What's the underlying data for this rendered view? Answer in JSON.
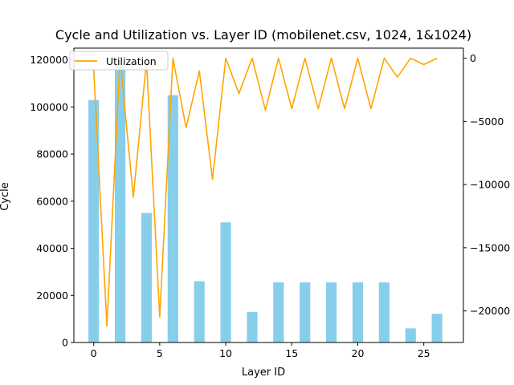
{
  "chart_data": {
    "type": "bar+line",
    "title": "Cycle and Utilization vs. Layer ID (mobilenet.csv, 1024, 1&1024)",
    "xlabel": "Layer ID",
    "ylabel": "Cycle",
    "y2label": "",
    "xlim": [
      -1.5,
      28
    ],
    "ylim": [
      0,
      125000
    ],
    "y2lim": [
      -22500,
      800
    ],
    "xticks": [
      0,
      5,
      10,
      15,
      20,
      25
    ],
    "yticks": [
      0,
      20000,
      40000,
      60000,
      80000,
      100000,
      120000
    ],
    "y2ticks": [
      -20000,
      -15000,
      -10000,
      -5000,
      0
    ],
    "bar_series": {
      "name": "Cycle",
      "color": "#87ceeb",
      "x": [
        0,
        2,
        4,
        6,
        8,
        10,
        12,
        14,
        16,
        18,
        20,
        22,
        24,
        26
      ],
      "values": [
        103000,
        118000,
        55000,
        105000,
        26000,
        51000,
        13000,
        25500,
        25500,
        25500,
        25500,
        25500,
        6000,
        12200
      ]
    },
    "line_series": {
      "name": "Utilization",
      "color": "#ffa500",
      "x": [
        0,
        1,
        2,
        3,
        4,
        5,
        6,
        7,
        8,
        9,
        10,
        11,
        12,
        13,
        14,
        15,
        16,
        17,
        18,
        19,
        20,
        21,
        22,
        23,
        24,
        25,
        26
      ],
      "y": [
        -900,
        -21200,
        0,
        -11000,
        -200,
        -20500,
        0,
        -5500,
        -1000,
        -9600,
        0,
        -2800,
        0,
        -4100,
        0,
        -4000,
        0,
        -4000,
        0,
        -4000,
        0,
        -4000,
        0,
        -1500,
        0,
        -500,
        0
      ]
    },
    "legend": {
      "position": "top-left",
      "entries": [
        "Utilization"
      ]
    },
    "grid": false
  }
}
